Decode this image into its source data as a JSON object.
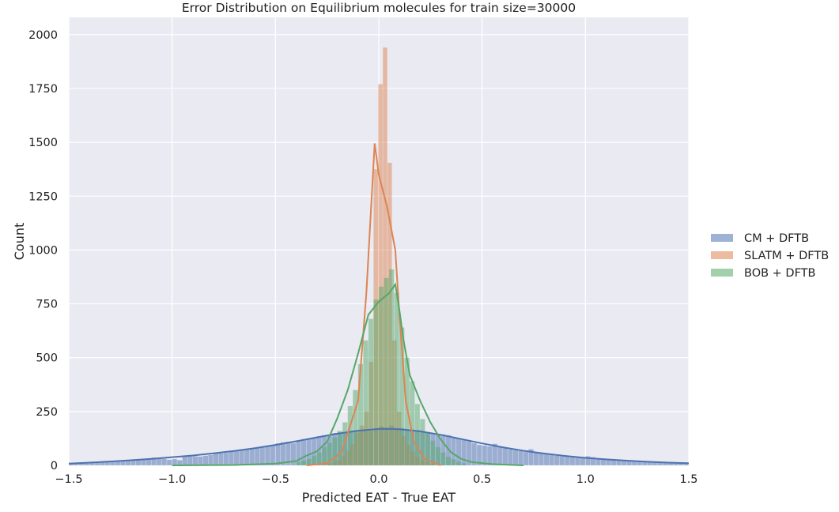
{
  "chart_data": {
    "type": "histogram",
    "title": "Error Distribution on Equilibrium molecules for train size=30000",
    "xlabel": "Predicted EAT - True EAT",
    "ylabel": "Count",
    "xlim": [
      -1.5,
      1.5
    ],
    "ylim": [
      0,
      2080
    ],
    "x_ticks": [
      -1.5,
      -1.0,
      -0.5,
      0.0,
      0.5,
      1.0,
      1.5
    ],
    "x_tick_labels": [
      "−1.5",
      "−1.0",
      "−0.5",
      "0.0",
      "0.5",
      "1.0",
      "1.5"
    ],
    "y_ticks": [
      0,
      250,
      500,
      750,
      1000,
      1250,
      1500,
      1750,
      2000
    ],
    "y_tick_labels": [
      "0",
      "250",
      "500",
      "750",
      "1000",
      "1250",
      "1500",
      "1750",
      "2000"
    ],
    "grid": true,
    "legend_position": "right",
    "series": [
      {
        "name": "CM + DFTB",
        "color": "#4c72b0",
        "kind": "gaussian-like",
        "center": 0.03,
        "bin_width": 0.025,
        "approx_peak": 170,
        "bins": [
          [
            -1.5,
            8
          ],
          [
            -1.475,
            9
          ],
          [
            -1.45,
            11
          ],
          [
            -1.425,
            12
          ],
          [
            -1.4,
            14
          ],
          [
            -1.375,
            15
          ],
          [
            -1.35,
            15
          ],
          [
            -1.325,
            17
          ],
          [
            -1.3,
            18
          ],
          [
            -1.275,
            19
          ],
          [
            -1.25,
            21
          ],
          [
            -1.225,
            22
          ],
          [
            -1.2,
            25
          ],
          [
            -1.175,
            27
          ],
          [
            -1.15,
            30
          ],
          [
            -1.125,
            33
          ],
          [
            -1.1,
            36
          ],
          [
            -1.075,
            35
          ],
          [
            -1.05,
            30
          ],
          [
            -1.025,
            26
          ],
          [
            -1.0,
            29
          ],
          [
            -0.975,
            24
          ],
          [
            -0.95,
            45
          ],
          [
            -0.925,
            47
          ],
          [
            -0.9,
            42
          ],
          [
            -0.875,
            41
          ],
          [
            -0.85,
            45
          ],
          [
            -0.825,
            48
          ],
          [
            -0.8,
            55
          ],
          [
            -0.775,
            56
          ],
          [
            -0.75,
            58
          ],
          [
            -0.725,
            63
          ],
          [
            -0.7,
            66
          ],
          [
            -0.675,
            70
          ],
          [
            -0.65,
            72
          ],
          [
            -0.625,
            77
          ],
          [
            -0.6,
            81
          ],
          [
            -0.575,
            85
          ],
          [
            -0.55,
            92
          ],
          [
            -0.525,
            95
          ],
          [
            -0.5,
            102
          ],
          [
            -0.475,
            107
          ],
          [
            -0.45,
            110
          ],
          [
            -0.425,
            103
          ],
          [
            -0.4,
            114
          ],
          [
            -0.375,
            122
          ],
          [
            -0.35,
            125
          ],
          [
            -0.325,
            130
          ],
          [
            -0.3,
            135
          ],
          [
            -0.275,
            140
          ],
          [
            -0.25,
            143
          ],
          [
            -0.225,
            150
          ],
          [
            -0.2,
            153
          ],
          [
            -0.175,
            155
          ],
          [
            -0.15,
            160
          ],
          [
            -0.125,
            162
          ],
          [
            -0.1,
            165
          ],
          [
            -0.075,
            168
          ],
          [
            -0.05,
            160
          ],
          [
            -0.025,
            172
          ],
          [
            0.0,
            180
          ],
          [
            0.025,
            175
          ],
          [
            0.05,
            185
          ],
          [
            0.075,
            170
          ],
          [
            0.1,
            172
          ],
          [
            0.125,
            167
          ],
          [
            0.15,
            166
          ],
          [
            0.175,
            160
          ],
          [
            0.2,
            156
          ],
          [
            0.225,
            152
          ],
          [
            0.25,
            150
          ],
          [
            0.275,
            145
          ],
          [
            0.3,
            144
          ],
          [
            0.325,
            140
          ],
          [
            0.35,
            132
          ],
          [
            0.375,
            126
          ],
          [
            0.4,
            120
          ],
          [
            0.425,
            112
          ],
          [
            0.45,
            103
          ],
          [
            0.475,
            95
          ],
          [
            0.5,
            92
          ],
          [
            0.525,
            88
          ],
          [
            0.55,
            100
          ],
          [
            0.575,
            85
          ],
          [
            0.6,
            80
          ],
          [
            0.625,
            74
          ],
          [
            0.65,
            70
          ],
          [
            0.675,
            66
          ],
          [
            0.7,
            62
          ],
          [
            0.725,
            75
          ],
          [
            0.75,
            58
          ],
          [
            0.775,
            55
          ],
          [
            0.8,
            52
          ],
          [
            0.825,
            48
          ],
          [
            0.85,
            44
          ],
          [
            0.875,
            42
          ],
          [
            0.9,
            40
          ],
          [
            0.925,
            38
          ],
          [
            0.95,
            36
          ],
          [
            0.975,
            34
          ],
          [
            1.0,
            42
          ],
          [
            1.025,
            38
          ],
          [
            1.05,
            30
          ],
          [
            1.075,
            28
          ],
          [
            1.1,
            26
          ],
          [
            1.125,
            24
          ],
          [
            1.15,
            22
          ],
          [
            1.175,
            21
          ],
          [
            1.2,
            20
          ],
          [
            1.225,
            19
          ],
          [
            1.25,
            17
          ],
          [
            1.275,
            16
          ],
          [
            1.3,
            15
          ],
          [
            1.325,
            14
          ],
          [
            1.35,
            13
          ],
          [
            1.375,
            12
          ],
          [
            1.4,
            12
          ],
          [
            1.425,
            11
          ],
          [
            1.45,
            10
          ],
          [
            1.475,
            9
          ]
        ],
        "kde": [
          [
            -1.5,
            8
          ],
          [
            -1.4,
            13
          ],
          [
            -1.3,
            18
          ],
          [
            -1.2,
            24
          ],
          [
            -1.1,
            30
          ],
          [
            -1.0,
            38
          ],
          [
            -0.9,
            46
          ],
          [
            -0.8,
            56
          ],
          [
            -0.7,
            67
          ],
          [
            -0.6,
            80
          ],
          [
            -0.5,
            95
          ],
          [
            -0.4,
            112
          ],
          [
            -0.3,
            130
          ],
          [
            -0.2,
            147
          ],
          [
            -0.1,
            161
          ],
          [
            0.0,
            169
          ],
          [
            0.05,
            170
          ],
          [
            0.1,
            168
          ],
          [
            0.2,
            158
          ],
          [
            0.3,
            142
          ],
          [
            0.4,
            122
          ],
          [
            0.5,
            102
          ],
          [
            0.6,
            84
          ],
          [
            0.7,
            68
          ],
          [
            0.8,
            55
          ],
          [
            0.9,
            44
          ],
          [
            1.0,
            35
          ],
          [
            1.1,
            28
          ],
          [
            1.2,
            22
          ],
          [
            1.3,
            17
          ],
          [
            1.4,
            13
          ],
          [
            1.5,
            10
          ]
        ]
      },
      {
        "name": "SLATM + DFTB",
        "color": "#dd8452",
        "kind": "sharp-peak",
        "bin_width": 0.0225,
        "bins": [
          [
            -0.25,
            8
          ],
          [
            -0.2275,
            14
          ],
          [
            -0.205,
            24
          ],
          [
            -0.1825,
            45
          ],
          [
            -0.16,
            70
          ],
          [
            -0.1375,
            100
          ],
          [
            -0.115,
            150
          ],
          [
            -0.0925,
            185
          ],
          [
            -0.07,
            250
          ],
          [
            -0.0475,
            480
          ],
          [
            -0.025,
            1375
          ],
          [
            -0.0025,
            1770
          ],
          [
            0.02,
            1940
          ],
          [
            0.0425,
            1405
          ],
          [
            0.065,
            580
          ],
          [
            0.0875,
            250
          ],
          [
            0.11,
            135
          ],
          [
            0.1325,
            95
          ],
          [
            0.155,
            65
          ],
          [
            0.1775,
            40
          ],
          [
            0.2,
            25
          ],
          [
            0.2225,
            15
          ],
          [
            0.245,
            8
          ]
        ],
        "kde": [
          [
            -0.35,
            0
          ],
          [
            -0.25,
            10
          ],
          [
            -0.18,
            60
          ],
          [
            -0.1,
            300
          ],
          [
            -0.06,
            800
          ],
          [
            -0.02,
            1495
          ],
          [
            0.0,
            1350
          ],
          [
            0.04,
            1200
          ],
          [
            0.08,
            1000
          ],
          [
            0.1,
            700
          ],
          [
            0.13,
            300
          ],
          [
            0.17,
            110
          ],
          [
            0.22,
            30
          ],
          [
            0.3,
            0
          ]
        ]
      },
      {
        "name": "BOB + DFTB",
        "color": "#55a868",
        "kind": "peak",
        "bin_width": 0.025,
        "bins": [
          [
            -0.4,
            15
          ],
          [
            -0.375,
            22
          ],
          [
            -0.35,
            30
          ],
          [
            -0.325,
            45
          ],
          [
            -0.3,
            60
          ],
          [
            -0.275,
            85
          ],
          [
            -0.25,
            105
          ],
          [
            -0.225,
            130
          ],
          [
            -0.2,
            160
          ],
          [
            -0.175,
            200
          ],
          [
            -0.15,
            275
          ],
          [
            -0.125,
            350
          ],
          [
            -0.1,
            470
          ],
          [
            -0.075,
            580
          ],
          [
            -0.05,
            680
          ],
          [
            -0.025,
            770
          ],
          [
            0.0,
            830
          ],
          [
            0.025,
            870
          ],
          [
            0.05,
            910
          ],
          [
            0.075,
            800
          ],
          [
            0.1,
            640
          ],
          [
            0.125,
            500
          ],
          [
            0.15,
            390
          ],
          [
            0.175,
            285
          ],
          [
            0.2,
            215
          ],
          [
            0.225,
            150
          ],
          [
            0.25,
            115
          ],
          [
            0.275,
            85
          ],
          [
            0.3,
            60
          ],
          [
            0.325,
            40
          ],
          [
            0.35,
            28
          ],
          [
            0.375,
            18
          ],
          [
            0.4,
            10
          ]
        ],
        "kde": [
          [
            -1.0,
            0
          ],
          [
            -0.7,
            2
          ],
          [
            -0.5,
            8
          ],
          [
            -0.4,
            20
          ],
          [
            -0.35,
            45
          ],
          [
            -0.3,
            65
          ],
          [
            -0.25,
            110
          ],
          [
            -0.2,
            220
          ],
          [
            -0.15,
            350
          ],
          [
            -0.1,
            520
          ],
          [
            -0.05,
            700
          ],
          [
            0.0,
            760
          ],
          [
            0.05,
            800
          ],
          [
            0.08,
            840
          ],
          [
            0.1,
            720
          ],
          [
            0.12,
            580
          ],
          [
            0.15,
            420
          ],
          [
            0.2,
            300
          ],
          [
            0.25,
            200
          ],
          [
            0.3,
            120
          ],
          [
            0.35,
            60
          ],
          [
            0.4,
            30
          ],
          [
            0.45,
            15
          ],
          [
            0.55,
            6
          ],
          [
            0.7,
            0
          ]
        ]
      }
    ]
  }
}
